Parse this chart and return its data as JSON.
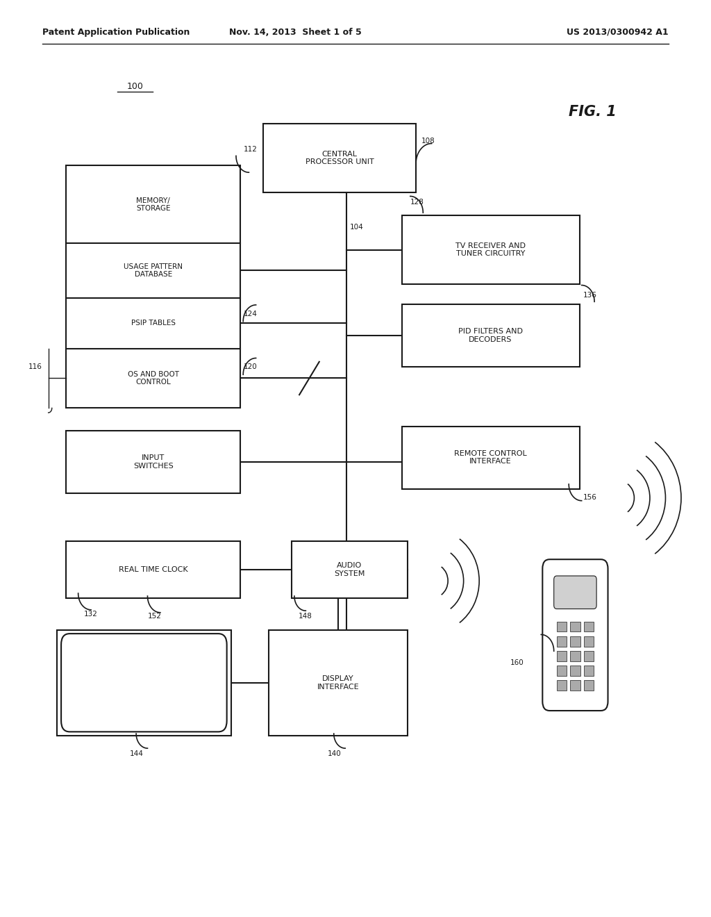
{
  "bg_color": "#ffffff",
  "header_left": "Patent Application Publication",
  "header_mid": "Nov. 14, 2013  Sheet 1 of 5",
  "header_right": "US 2013/0300942 A1",
  "fig_label": "FIG. 1",
  "system_label": "100",
  "line_color": "#1a1a1a",
  "text_color": "#1a1a1a",
  "line_width": 1.5
}
